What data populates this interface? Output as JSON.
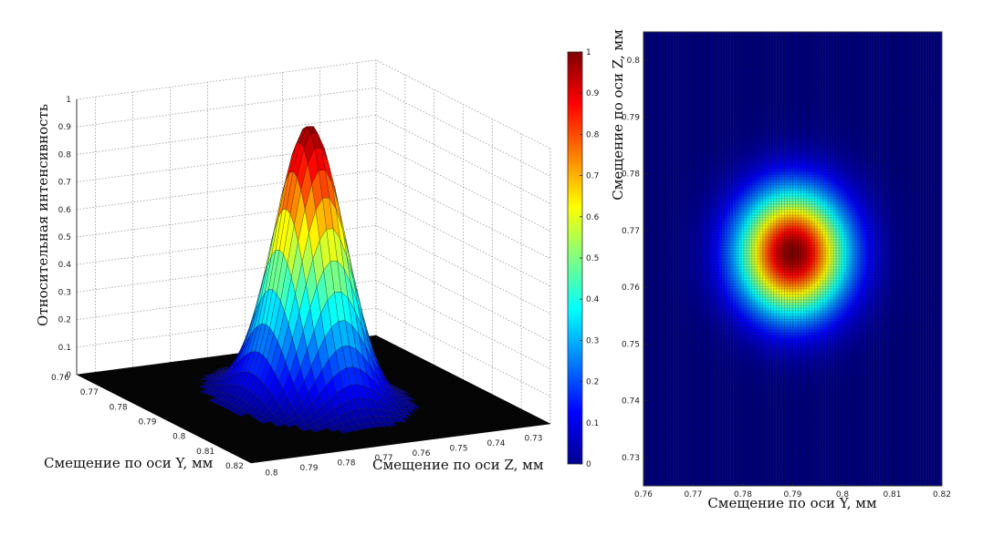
{
  "chart_data": [
    {
      "type": "surface",
      "title": "",
      "xlabel": "Смещение по оси Y, мм",
      "ylabel": "Смещение по оси Z, мм",
      "zlabel": "Относительная интенсивность",
      "xlim": [
        0.76,
        0.82
      ],
      "ylim": [
        0.725,
        0.805
      ],
      "zlim": [
        0,
        1
      ],
      "x_ticks": [
        "0.76",
        "0.77",
        "0.78",
        "0.79",
        "0.8",
        "0.81",
        "0.82"
      ],
      "y_ticks": [
        "0.73",
        "0.74",
        "0.75",
        "0.76",
        "0.77",
        "0.78",
        "0.79",
        "0.8"
      ],
      "z_ticks": [
        "0",
        "0.1",
        "0.2",
        "0.3",
        "0.4",
        "0.5",
        "0.6",
        "0.7",
        "0.8",
        "0.9",
        "1"
      ],
      "grid": true,
      "colormap": "jet",
      "gaussian_peak": {
        "y_center": 0.79,
        "z_center": 0.766,
        "amplitude": 1.0,
        "sigma_y": 0.0075,
        "sigma_z": 0.0075
      }
    },
    {
      "type": "heatmap",
      "title": "",
      "xlabel": "Смещение по оси Y, мм",
      "ylabel": "Смещение по оси Z, мм",
      "xlim": [
        0.76,
        0.82
      ],
      "ylim": [
        0.725,
        0.805
      ],
      "x_ticks": [
        "0.76",
        "0.77",
        "0.78",
        "0.79",
        "0.8",
        "0.81",
        "0.82"
      ],
      "y_ticks": [
        "0.73",
        "0.74",
        "0.75",
        "0.76",
        "0.77",
        "0.78",
        "0.79",
        "0.8"
      ],
      "colormap": "jet",
      "gaussian_peak": {
        "y_center": 0.79,
        "z_center": 0.766,
        "amplitude": 1.0,
        "sigma_y": 0.0075,
        "sigma_z": 0.0075
      }
    }
  ],
  "colorbar": {
    "range": [
      0,
      1
    ],
    "ticks": [
      "0",
      "0.1",
      "0.2",
      "0.3",
      "0.4",
      "0.5",
      "0.6",
      "0.7",
      "0.8",
      "0.9",
      "1"
    ],
    "colormap": "jet"
  }
}
